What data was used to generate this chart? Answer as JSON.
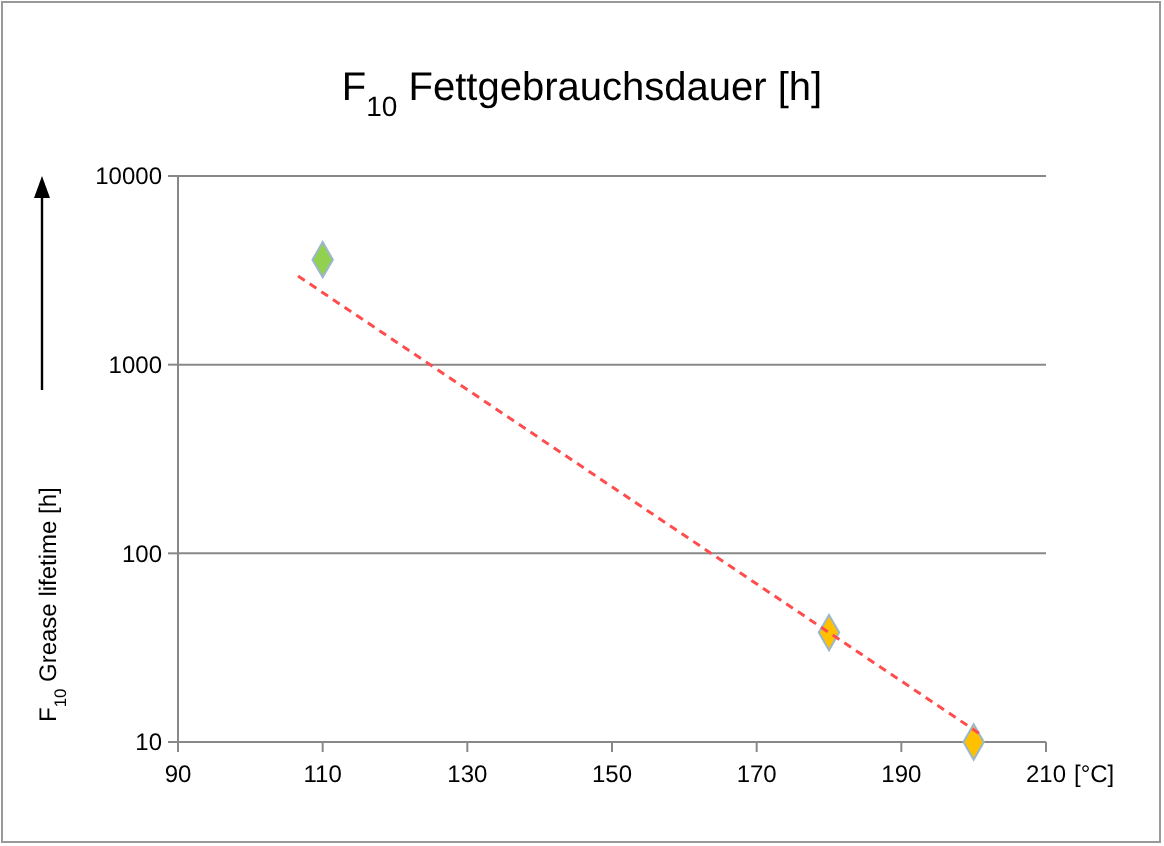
{
  "chart_data": {
    "type": "scatter",
    "title": "F$_{10}$ Fettgebrauchsdauer [h]",
    "xlabel": "[°C]",
    "ylabel": "F$_{10}$ Grease lifetime [h]",
    "series": [
      {
        "x": [
          110,
          180,
          200
        ],
        "values": [
          3600,
          38,
          10
        ],
        "colors": [
          "#92d050",
          "#ffc000",
          "#ffc000"
        ],
        "marker": "diamond"
      },
      {
        "type": "line",
        "x": [
          106.6,
          201.4
        ],
        "values": [
          2950,
          10.7
        ],
        "color": "#ff4d4d",
        "line_style": "dashed",
        "marker": "none"
      }
    ],
    "xlim": [
      90,
      210
    ],
    "xticks": [
      90,
      110,
      130,
      150,
      170,
      190,
      210
    ],
    "ylim": [
      10,
      10000
    ],
    "yticks": [
      10,
      100,
      1000,
      10000
    ],
    "log": "y",
    "grid": "y"
  }
}
